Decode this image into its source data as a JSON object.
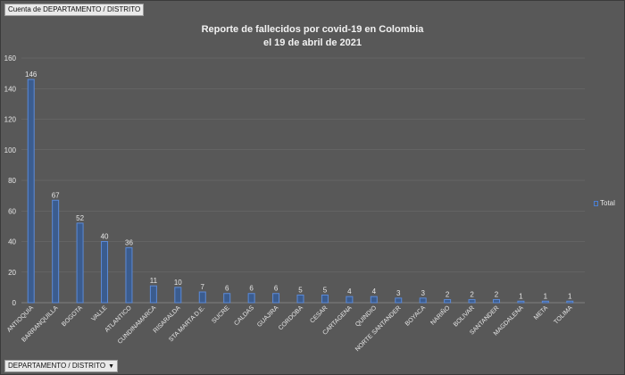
{
  "header": {
    "field_top_label": "Cuenta de DEPARTAMENTO / DISTRITO",
    "field_bottom_label": "DEPARTAMENTO / DISTRITO",
    "dropdown_glyph": "▼"
  },
  "colors": {
    "background": "#585858",
    "bar_fill": "#3b5c8e",
    "bar_stroke": "#5b8ad8",
    "text": "#e6e6e6",
    "grid": "#6e6e6e"
  },
  "chart_data": {
    "type": "bar",
    "title": "Reporte de fallecidos por covid-19 en Colombia",
    "subtitle": "el 19 de abril de 2021",
    "xlabel": "",
    "ylabel": "",
    "ylim": [
      0,
      160
    ],
    "yticks": [
      0,
      20,
      40,
      60,
      80,
      100,
      120,
      140,
      160
    ],
    "grid": true,
    "legend_position": "right",
    "categories": [
      "ANTIOQUIA",
      "BARRANQUILLA",
      "BOGOTA",
      "VALLE",
      "ATLANTICO",
      "CUNDINAMARCA",
      "RISARALDA",
      "STA MARTA D.E.",
      "SUCRE",
      "CALDAS",
      "GUAJIRA",
      "CORDOBA",
      "CESAR",
      "CARTAGENA",
      "QUINDIO",
      "NORTE SANTANDER",
      "BOYACA",
      "NARIÑO",
      "BOLIVAR",
      "SANTANDER",
      "MAGDALENA",
      "META",
      "TOLIMA"
    ],
    "series": [
      {
        "name": "Total",
        "values": [
          146,
          67,
          52,
          40,
          36,
          11,
          10,
          7,
          6,
          6,
          6,
          5,
          5,
          4,
          4,
          3,
          3,
          2,
          2,
          2,
          1,
          1,
          1
        ]
      }
    ]
  }
}
